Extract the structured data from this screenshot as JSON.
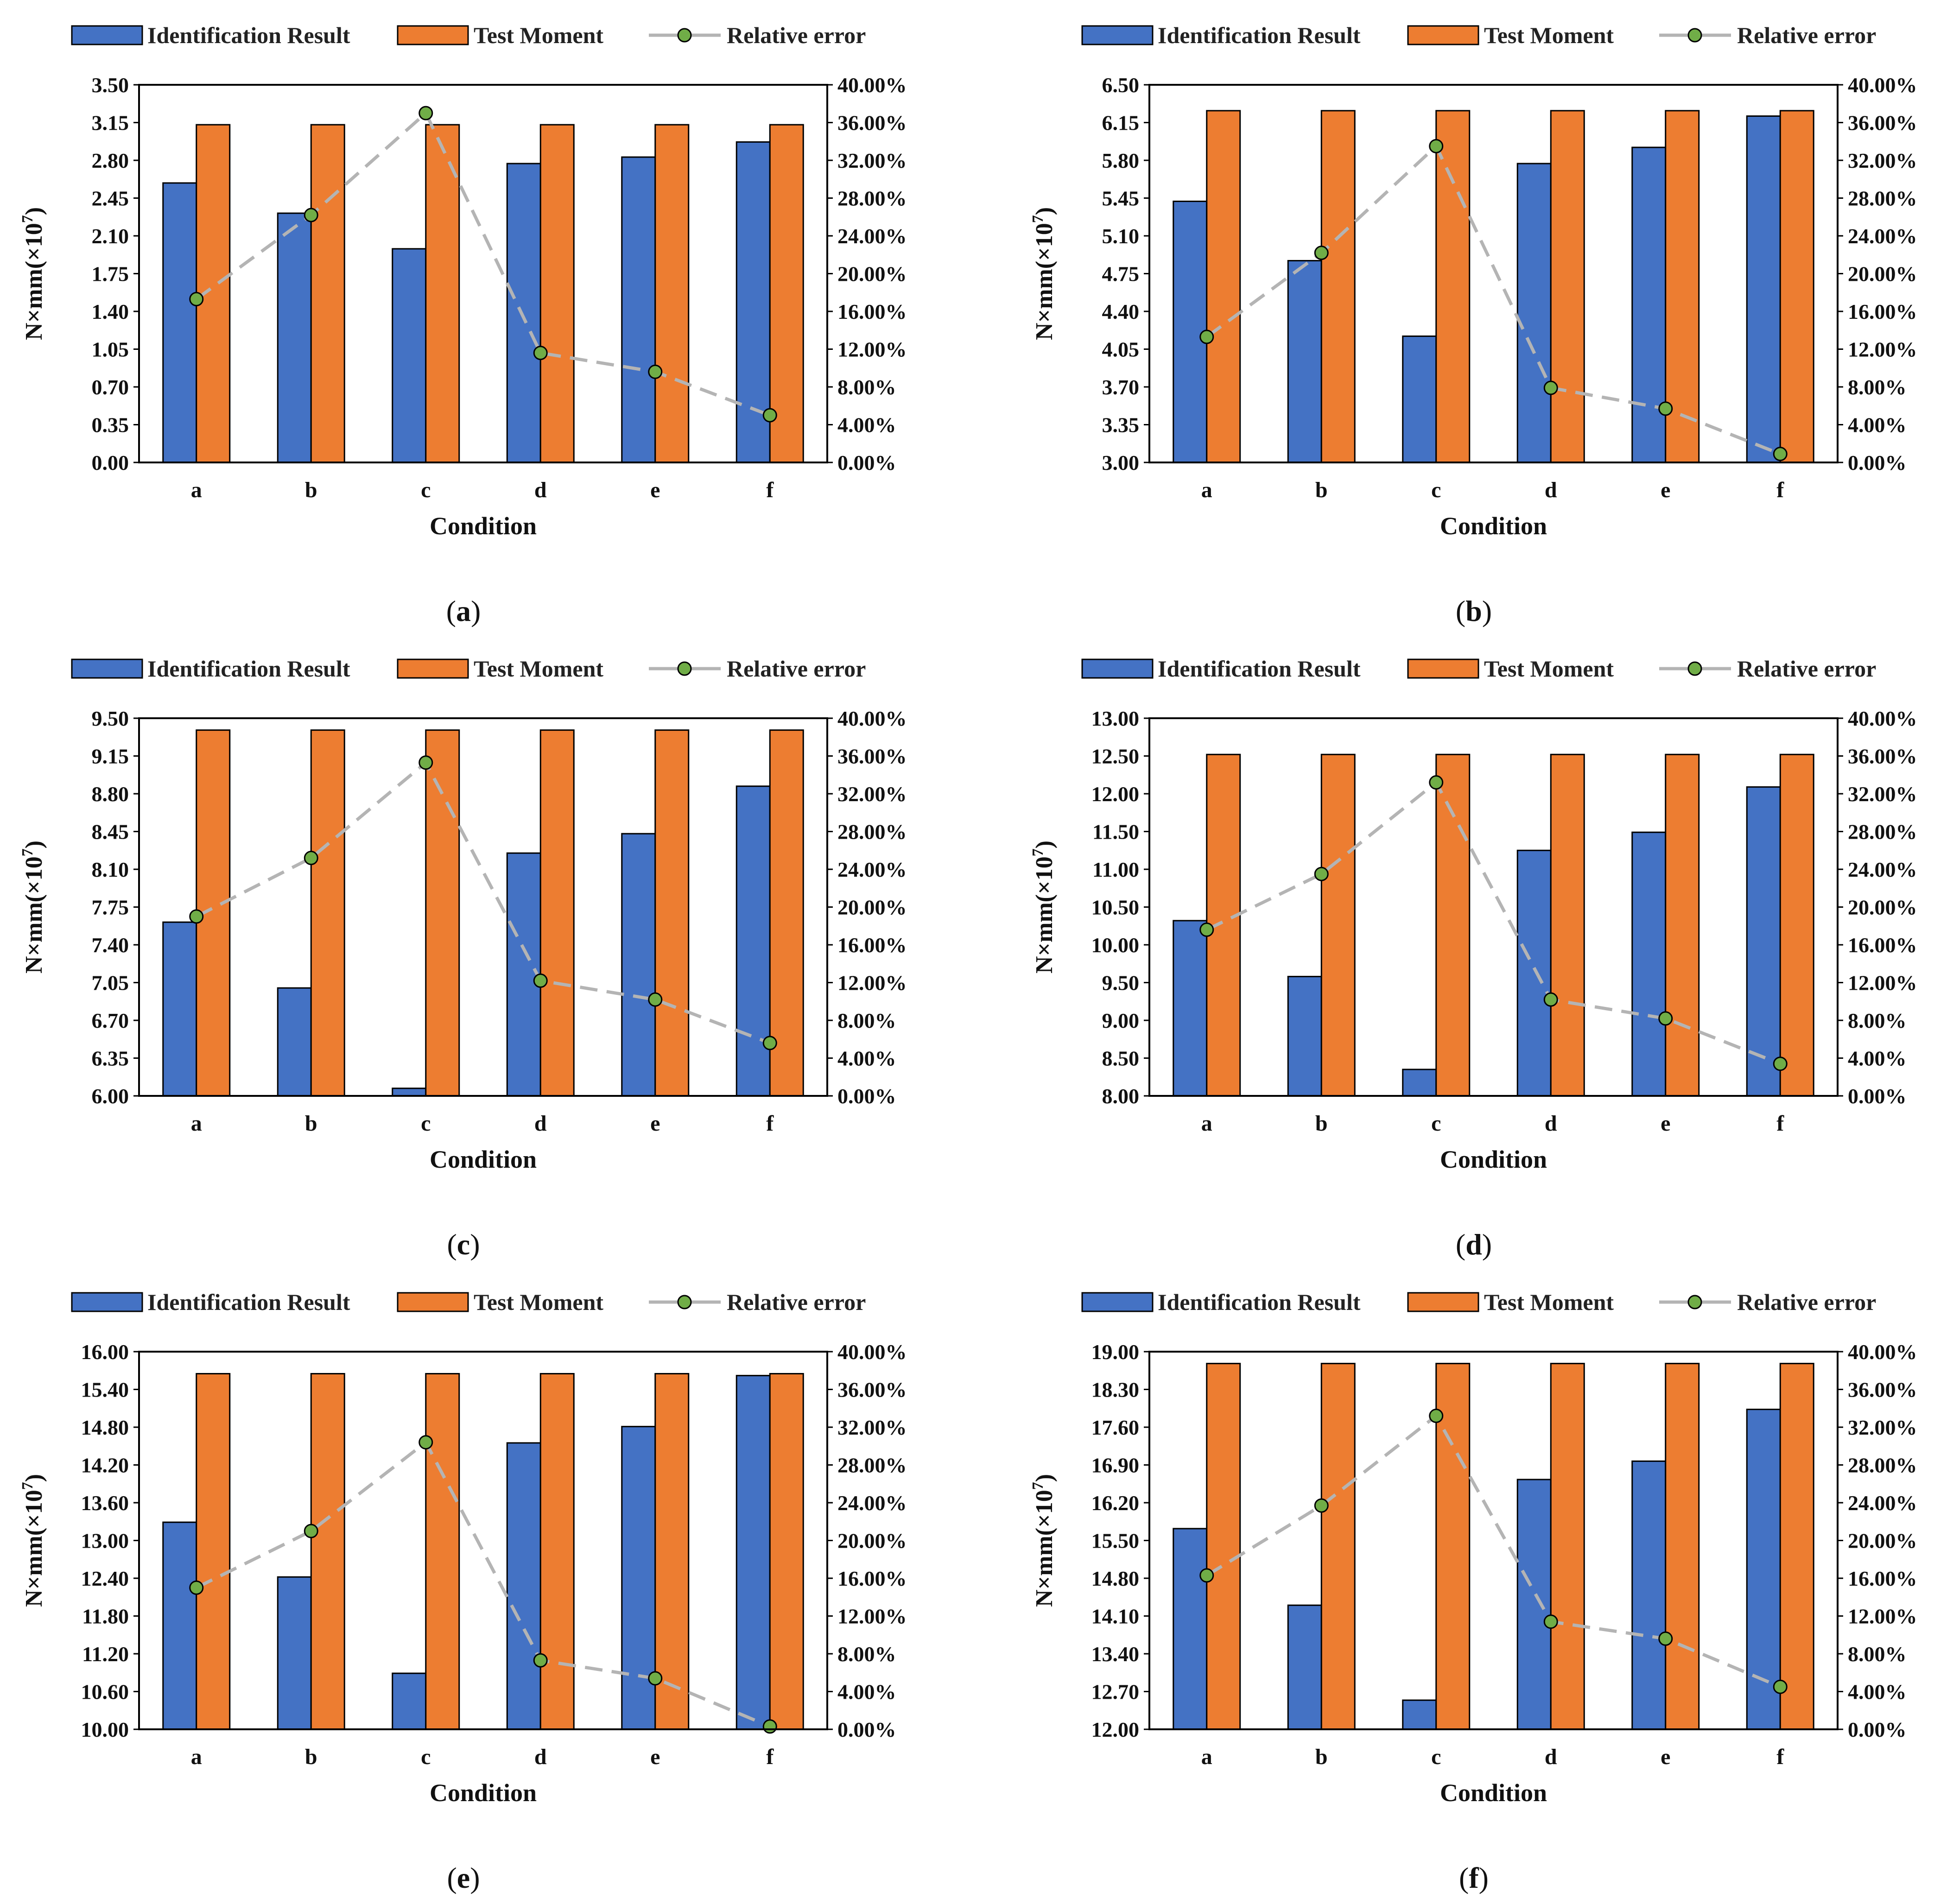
{
  "legend": {
    "bar1": "Identification Result",
    "bar2": "Test Moment",
    "line": "Relative error"
  },
  "colors": {
    "bar1": "#4472C4",
    "bar2": "#ED7D31",
    "line": "#B4B4B4",
    "marker": "#70AD47",
    "stroke": "#000000"
  },
  "chart_data": [
    {
      "type": "bar",
      "panel_label": "a",
      "categories": [
        "a",
        "b",
        "c",
        "d",
        "e",
        "f"
      ],
      "xlabel": "Condition",
      "ylabel_main": "N×mm(×10",
      "ylabel_exp": "7",
      "ylabel_tail": ")",
      "ylim": [
        0,
        3.5
      ],
      "yticks": [
        "0.00",
        "0.35",
        "0.70",
        "1.05",
        "1.40",
        "1.75",
        "2.10",
        "2.45",
        "2.80",
        "3.15",
        "3.50"
      ],
      "y2lim": [
        0,
        40
      ],
      "y2ticks": [
        "0.00%",
        "4.00%",
        "8.00%",
        "12.00%",
        "16.00%",
        "20.00%",
        "24.00%",
        "28.00%",
        "32.00%",
        "36.00%",
        "40.00%"
      ],
      "series": [
        {
          "name": "Identification Result",
          "values": [
            2.59,
            2.31,
            1.98,
            2.77,
            2.83,
            2.97
          ]
        },
        {
          "name": "Test Moment",
          "values": [
            3.13,
            3.13,
            3.13,
            3.13,
            3.13,
            3.13
          ]
        },
        {
          "name": "Relative error",
          "axis": "y2",
          "values": [
            17.3,
            26.2,
            37.0,
            11.6,
            9.6,
            5.0
          ]
        }
      ]
    },
    {
      "type": "bar",
      "panel_label": "b",
      "categories": [
        "a",
        "b",
        "c",
        "d",
        "e",
        "f"
      ],
      "xlabel": "Condition",
      "ylabel_main": "N×mm(×10",
      "ylabel_exp": "7",
      "ylabel_tail": ")",
      "ylim": [
        3,
        6.5
      ],
      "yticks": [
        "3.00",
        "3.35",
        "3.70",
        "4.05",
        "4.40",
        "4.75",
        "5.10",
        "5.45",
        "5.80",
        "6.15",
        "6.50"
      ],
      "y2lim": [
        0,
        40
      ],
      "y2ticks": [
        "0.00%",
        "4.00%",
        "8.00%",
        "12.00%",
        "16.00%",
        "20.00%",
        "24.00%",
        "28.00%",
        "32.00%",
        "36.00%",
        "40.00%"
      ],
      "series": [
        {
          "name": "Identification Result",
          "values": [
            5.42,
            4.87,
            4.17,
            5.77,
            5.92,
            6.21
          ]
        },
        {
          "name": "Test Moment",
          "values": [
            6.26,
            6.26,
            6.26,
            6.26,
            6.26,
            6.26
          ]
        },
        {
          "name": "Relative error",
          "axis": "y2",
          "values": [
            13.3,
            22.2,
            33.5,
            7.9,
            5.7,
            0.9
          ]
        }
      ]
    },
    {
      "type": "bar",
      "panel_label": "c",
      "categories": [
        "a",
        "b",
        "c",
        "d",
        "e",
        "f"
      ],
      "xlabel": "Condition",
      "ylabel_main": "N×mm(×10",
      "ylabel_exp": "7",
      "ylabel_tail": ")",
      "ylim": [
        6,
        9.5
      ],
      "yticks": [
        "6.00",
        "6.35",
        "6.70",
        "7.05",
        "7.40",
        "7.75",
        "8.10",
        "8.45",
        "8.80",
        "9.15",
        "9.50"
      ],
      "y2lim": [
        0,
        40
      ],
      "y2ticks": [
        "0.00%",
        "4.00%",
        "8.00%",
        "12.00%",
        "16.00%",
        "20.00%",
        "24.00%",
        "28.00%",
        "32.00%",
        "36.00%",
        "40.00%"
      ],
      "series": [
        {
          "name": "Identification Result",
          "values": [
            7.61,
            7.0,
            6.07,
            8.25,
            8.43,
            8.87
          ]
        },
        {
          "name": "Test Moment",
          "values": [
            9.39,
            9.39,
            9.39,
            9.39,
            9.39,
            9.39
          ]
        },
        {
          "name": "Relative error",
          "axis": "y2",
          "values": [
            19.0,
            25.2,
            35.3,
            12.2,
            10.2,
            5.6
          ]
        }
      ]
    },
    {
      "type": "bar",
      "panel_label": "d",
      "categories": [
        "a",
        "b",
        "c",
        "d",
        "e",
        "f"
      ],
      "xlabel": "Condition",
      "ylabel_main": "N×mm(×10",
      "ylabel_exp": "7",
      "ylabel_tail": ")",
      "ylim": [
        8,
        13
      ],
      "yticks": [
        "8.00",
        "8.50",
        "9.00",
        "9.50",
        "10.00",
        "10.50",
        "11.00",
        "11.50",
        "12.00",
        "12.50",
        "13.00"
      ],
      "y2lim": [
        0,
        40
      ],
      "y2ticks": [
        "0.00%",
        "4.00%",
        "8.00%",
        "12.00%",
        "16.00%",
        "20.00%",
        "24.00%",
        "28.00%",
        "32.00%",
        "36.00%",
        "40.00%"
      ],
      "series": [
        {
          "name": "Identification Result",
          "values": [
            10.32,
            9.58,
            8.35,
            11.25,
            11.49,
            12.09
          ]
        },
        {
          "name": "Test Moment",
          "values": [
            12.52,
            12.52,
            12.52,
            12.52,
            12.52,
            12.52
          ]
        },
        {
          "name": "Relative error",
          "axis": "y2",
          "values": [
            17.6,
            23.5,
            33.2,
            10.2,
            8.2,
            3.4
          ]
        }
      ]
    },
    {
      "type": "bar",
      "panel_label": "e",
      "categories": [
        "a",
        "b",
        "c",
        "d",
        "e",
        "f"
      ],
      "xlabel": "Condition",
      "ylabel_main": "N×mm(×10",
      "ylabel_exp": "7",
      "ylabel_tail": ")",
      "ylim": [
        10,
        16
      ],
      "yticks": [
        "10.00",
        "10.60",
        "11.20",
        "11.80",
        "12.40",
        "13.00",
        "13.60",
        "14.20",
        "14.80",
        "15.40",
        "16.00"
      ],
      "y2lim": [
        0,
        40
      ],
      "y2ticks": [
        "0.00%",
        "4.00%",
        "8.00%",
        "12.00%",
        "16.00%",
        "20.00%",
        "24.00%",
        "28.00%",
        "32.00%",
        "36.00%",
        "40.00%"
      ],
      "series": [
        {
          "name": "Identification Result",
          "values": [
            13.29,
            12.42,
            10.89,
            14.55,
            14.81,
            15.62
          ]
        },
        {
          "name": "Test Moment",
          "values": [
            15.65,
            15.65,
            15.65,
            15.65,
            15.65,
            15.65
          ]
        },
        {
          "name": "Relative error",
          "axis": "y2",
          "values": [
            15.0,
            21.0,
            30.4,
            7.3,
            5.4,
            0.3
          ]
        }
      ]
    },
    {
      "type": "bar",
      "panel_label": "f",
      "categories": [
        "a",
        "b",
        "c",
        "d",
        "e",
        "f"
      ],
      "xlabel": "Condition",
      "ylabel_main": "N×mm(×10",
      "ylabel_exp": "7",
      "ylabel_tail": ")",
      "ylim": [
        12,
        19
      ],
      "yticks": [
        "12.00",
        "12.70",
        "13.40",
        "14.10",
        "14.80",
        "15.50",
        "16.20",
        "16.90",
        "17.60",
        "18.30",
        "19.00"
      ],
      "y2lim": [
        0,
        40
      ],
      "y2ticks": [
        "0.00%",
        "4.00%",
        "8.00%",
        "12.00%",
        "16.00%",
        "20.00%",
        "24.00%",
        "28.00%",
        "32.00%",
        "36.00%",
        "40.00%"
      ],
      "series": [
        {
          "name": "Identification Result",
          "values": [
            15.72,
            14.3,
            12.54,
            16.63,
            16.97,
            17.93
          ]
        },
        {
          "name": "Test Moment",
          "values": [
            18.78,
            18.78,
            18.78,
            18.78,
            18.78,
            18.78
          ]
        },
        {
          "name": "Relative error",
          "axis": "y2",
          "values": [
            16.3,
            23.7,
            33.2,
            11.4,
            9.6,
            4.5
          ]
        }
      ]
    }
  ]
}
